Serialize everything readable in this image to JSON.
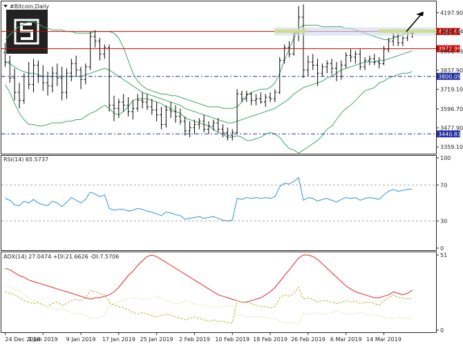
{
  "window": {
    "title": "#Bitcoin,Daily"
  },
  "colors": {
    "candle": "#000000",
    "bollinger": "#3fa463",
    "rsi": "#2f8fe0",
    "adx": "#e0242a",
    "di_plus": "#b5b02a",
    "di_minus": "#cfe29a",
    "level": "#cc0000",
    "dashed_level": "#1d2a9c",
    "highlight": "#d8e000",
    "logo": "#222222"
  },
  "price_panel": {
    "price_ticks": [
      "4197.90",
      "4080.64",
      "3956.73",
      "3837.90",
      "3719.10",
      "3596.70",
      "3477.90",
      "3359.10"
    ],
    "levels": [
      {
        "label": "4080.64",
        "value": 4080.64,
        "style": "solid"
      },
      {
        "label": "3972.96",
        "value": 3972.96,
        "style": "solid"
      },
      {
        "label": "3800.09",
        "value": 3800.09,
        "style": "dashed"
      },
      {
        "label": "3440.81",
        "value": 3440.81,
        "style": "dashed"
      }
    ]
  },
  "rsi_panel": {
    "label": "RSI(14) 65.5737",
    "ticks": [
      "100",
      "70",
      "30",
      "0"
    ]
  },
  "adx_panel": {
    "label": "ADX(14) 27.0474 +DI:21.6626 -DI:7.5706",
    "ticks": [
      "51",
      "0"
    ]
  },
  "x_axis": {
    "labels": [
      "24 Dec 2018",
      "1 Jan 2019",
      "9 Jan 2019",
      "17 Jan 2019",
      "25 Jan 2019",
      "2 Feb 2019",
      "10 Feb 2019",
      "18 Feb 2019",
      "26 Feb 2019",
      "6 Mar 2019",
      "14 Mar 2019"
    ]
  },
  "chart_data": [
    {
      "type": "candlestick",
      "title": "#Bitcoin,Daily",
      "ylim": [
        3330,
        4260
      ],
      "x_labels": [
        "24 Dec 2018",
        "1 Jan 2019",
        "9 Jan 2019",
        "17 Jan 2019",
        "25 Jan 2019",
        "2 Feb 2019",
        "10 Feb 2019",
        "18 Feb 2019",
        "26 Feb 2019",
        "6 Mar 2019",
        "14 Mar 2019"
      ],
      "candles": [
        [
          3950,
          4010,
          3860,
          3890
        ],
        [
          3890,
          3930,
          3760,
          3790
        ],
        [
          3790,
          3850,
          3650,
          3700
        ],
        [
          3700,
          3760,
          3600,
          3650
        ],
        [
          3650,
          3820,
          3630,
          3800
        ],
        [
          3800,
          3890,
          3720,
          3750
        ],
        [
          3750,
          3910,
          3700,
          3870
        ],
        [
          3870,
          3900,
          3760,
          3800
        ],
        [
          3800,
          3870,
          3710,
          3760
        ],
        [
          3760,
          3830,
          3680,
          3740
        ],
        [
          3740,
          3860,
          3700,
          3820
        ],
        [
          3820,
          3880,
          3740,
          3790
        ],
        [
          3790,
          3860,
          3650,
          3700
        ],
        [
          3700,
          3850,
          3660,
          3820
        ],
        [
          3820,
          3910,
          3770,
          3880
        ],
        [
          3880,
          3930,
          3800,
          3840
        ],
        [
          3840,
          3860,
          3720,
          3780
        ],
        [
          3780,
          3880,
          3750,
          3860
        ],
        [
          3860,
          4080,
          3840,
          4050
        ],
        [
          4050,
          4090,
          3980,
          4020
        ],
        [
          4020,
          4040,
          3900,
          3940
        ],
        [
          3940,
          4000,
          3910,
          3980
        ],
        [
          3980,
          4000,
          3580,
          3620
        ],
        [
          3620,
          3680,
          3520,
          3600
        ],
        [
          3600,
          3660,
          3540,
          3640
        ],
        [
          3640,
          3690,
          3580,
          3620
        ],
        [
          3620,
          3670,
          3550,
          3580
        ],
        [
          3580,
          3650,
          3530,
          3600
        ],
        [
          3600,
          3690,
          3580,
          3650
        ],
        [
          3650,
          3700,
          3600,
          3640
        ],
        [
          3640,
          3690,
          3590,
          3610
        ],
        [
          3610,
          3660,
          3560,
          3590
        ],
        [
          3590,
          3640,
          3520,
          3560
        ],
        [
          3560,
          3610,
          3470,
          3500
        ],
        [
          3500,
          3620,
          3480,
          3590
        ],
        [
          3590,
          3640,
          3540,
          3580
        ],
        [
          3580,
          3620,
          3510,
          3550
        ],
        [
          3550,
          3600,
          3500,
          3520
        ],
        [
          3520,
          3550,
          3430,
          3460
        ],
        [
          3460,
          3520,
          3420,
          3480
        ],
        [
          3480,
          3530,
          3440,
          3500
        ],
        [
          3500,
          3540,
          3470,
          3520
        ],
        [
          3520,
          3560,
          3450,
          3470
        ],
        [
          3470,
          3520,
          3440,
          3490
        ],
        [
          3490,
          3530,
          3460,
          3510
        ],
        [
          3510,
          3540,
          3450,
          3470
        ],
        [
          3470,
          3500,
          3420,
          3450
        ],
        [
          3450,
          3480,
          3400,
          3430
        ],
        [
          3430,
          3470,
          3400,
          3450
        ],
        [
          3450,
          3720,
          3440,
          3690
        ],
        [
          3690,
          3710,
          3640,
          3660
        ],
        [
          3660,
          3710,
          3640,
          3690
        ],
        [
          3690,
          3700,
          3620,
          3650
        ],
        [
          3650,
          3690,
          3620,
          3660
        ],
        [
          3660,
          3700,
          3630,
          3640
        ],
        [
          3640,
          3690,
          3610,
          3670
        ],
        [
          3670,
          3700,
          3640,
          3660
        ],
        [
          3660,
          3720,
          3640,
          3700
        ],
        [
          3700,
          3920,
          3690,
          3900
        ],
        [
          3900,
          4000,
          3880,
          3980
        ],
        [
          3980,
          4020,
          3920,
          3940
        ],
        [
          3940,
          4090,
          3930,
          4070
        ],
        [
          4070,
          4240,
          4020,
          4170
        ],
        [
          4170,
          4250,
          3790,
          3840
        ],
        [
          3840,
          3930,
          3800,
          3890
        ],
        [
          3890,
          3940,
          3840,
          3870
        ],
        [
          3870,
          3910,
          3740,
          3820
        ],
        [
          3820,
          3880,
          3800,
          3860
        ],
        [
          3860,
          3900,
          3820,
          3880
        ],
        [
          3880,
          3910,
          3810,
          3850
        ],
        [
          3850,
          3890,
          3770,
          3800
        ],
        [
          3800,
          3900,
          3780,
          3870
        ],
        [
          3870,
          3950,
          3850,
          3930
        ],
        [
          3930,
          3970,
          3890,
          3920
        ],
        [
          3920,
          3960,
          3880,
          3940
        ],
        [
          3940,
          3970,
          3840,
          3860
        ],
        [
          3860,
          3920,
          3840,
          3900
        ],
        [
          3900,
          3930,
          3870,
          3910
        ],
        [
          3910,
          3940,
          3870,
          3890
        ],
        [
          3890,
          3920,
          3850,
          3880
        ],
        [
          3880,
          3990,
          3870,
          3970
        ],
        [
          3970,
          4040,
          3950,
          4020
        ],
        [
          4020,
          4070,
          3990,
          4050
        ],
        [
          4050,
          4070,
          3990,
          4010
        ],
        [
          4010,
          4050,
          3990,
          4040
        ],
        [
          4040,
          4090,
          4020,
          4070
        ],
        [
          4070,
          4090,
          4040,
          4068
        ]
      ],
      "bollinger_upper": [
        4030,
        4060,
        4090,
        4110,
        4130,
        4140,
        4140,
        4130,
        4110,
        4100,
        4090,
        4090,
        4090,
        4080,
        4080,
        4070,
        4070,
        4070,
        4070,
        4080,
        4080,
        4080,
        4080,
        4070,
        4040,
        3980,
        3900,
        3820,
        3770,
        3740,
        3720,
        3710,
        3700,
        3690,
        3690,
        3680,
        3680,
        3670,
        3660,
        3650,
        3640,
        3630,
        3620,
        3610,
        3610,
        3610,
        3600,
        3600,
        3600,
        3610,
        3640,
        3680,
        3700,
        3710,
        3720,
        3720,
        3730,
        3760,
        3820,
        3900,
        3970,
        4040,
        4100,
        4120,
        4120,
        4120,
        4120,
        4110,
        4110,
        4110,
        4110,
        4110,
        4100,
        4100,
        4090,
        4080,
        4070,
        4060,
        4050,
        4040,
        4030,
        4030,
        4040,
        4050,
        4060,
        4080,
        4090
      ],
      "bollinger_middle": [
        3890,
        3880,
        3860,
        3840,
        3830,
        3820,
        3820,
        3810,
        3800,
        3800,
        3800,
        3800,
        3800,
        3800,
        3800,
        3800,
        3800,
        3810,
        3820,
        3830,
        3840,
        3850,
        3840,
        3820,
        3800,
        3780,
        3760,
        3740,
        3720,
        3700,
        3690,
        3680,
        3670,
        3660,
        3650,
        3640,
        3630,
        3620,
        3600,
        3590,
        3580,
        3570,
        3560,
        3550,
        3540,
        3530,
        3520,
        3510,
        3510,
        3520,
        3530,
        3540,
        3550,
        3560,
        3570,
        3580,
        3590,
        3600,
        3620,
        3640,
        3660,
        3690,
        3710,
        3730,
        3740,
        3750,
        3760,
        3770,
        3790,
        3800,
        3820,
        3840,
        3850,
        3860,
        3870,
        3880,
        3890,
        3890,
        3890,
        3900,
        3900,
        3910,
        3920,
        3930,
        3940,
        3950,
        3960
      ],
      "bollinger_lower": [
        3750,
        3700,
        3630,
        3570,
        3530,
        3500,
        3500,
        3490,
        3490,
        3500,
        3510,
        3510,
        3510,
        3520,
        3520,
        3530,
        3530,
        3550,
        3570,
        3580,
        3600,
        3620,
        3600,
        3570,
        3560,
        3580,
        3610,
        3650,
        3660,
        3660,
        3660,
        3650,
        3640,
        3630,
        3610,
        3600,
        3580,
        3570,
        3540,
        3530,
        3520,
        3510,
        3500,
        3490,
        3470,
        3450,
        3440,
        3420,
        3420,
        3430,
        3420,
        3400,
        3400,
        3410,
        3420,
        3440,
        3450,
        3440,
        3420,
        3380,
        3350,
        3340,
        3320,
        3340,
        3360,
        3380,
        3400,
        3430,
        3470,
        3490,
        3530,
        3570,
        3600,
        3620,
        3650,
        3680,
        3710,
        3720,
        3730,
        3760,
        3770,
        3790,
        3800,
        3810,
        3820,
        3820,
        3830
      ]
    },
    {
      "type": "line",
      "title": "RSI(14) 65.5737",
      "ylim": [
        0,
        100
      ],
      "series": [
        {
          "values": [
            55,
            53,
            48,
            47,
            52,
            50,
            54,
            50,
            48,
            47,
            52,
            50,
            46,
            51,
            56,
            53,
            50,
            54,
            62,
            60,
            57,
            59,
            44,
            42,
            43,
            43,
            41,
            42,
            44,
            43,
            41,
            40,
            38,
            36,
            40,
            39,
            37,
            36,
            32,
            33,
            34,
            35,
            33,
            34,
            35,
            33,
            31,
            30,
            31,
            55,
            54,
            56,
            55,
            56,
            55,
            56,
            55,
            57,
            68,
            72,
            71,
            74,
            78,
            53,
            56,
            55,
            52,
            54,
            55,
            53,
            51,
            54,
            56,
            55,
            56,
            53,
            55,
            56,
            55,
            54,
            59,
            63,
            65,
            63,
            64,
            65,
            65.5737
          ]
        }
      ]
    },
    {
      "type": "line",
      "title": "ADX(14) 27.0474 +DI:21.6626 -DI:7.5706",
      "ylim": [
        0,
        51
      ],
      "series": [
        {
          "name": "ADX",
          "values": [
            42,
            41,
            39,
            37,
            36,
            34,
            33,
            32,
            31,
            30,
            29,
            28,
            27,
            26,
            25,
            24,
            23,
            22,
            21,
            22,
            22,
            23,
            24,
            26,
            29,
            33,
            37,
            40,
            44,
            47,
            50,
            51,
            50,
            48,
            46,
            44,
            42,
            40,
            38,
            36,
            34,
            32,
            30,
            28,
            26,
            24,
            23,
            22,
            21,
            20,
            19,
            19,
            20,
            21,
            22,
            24,
            26,
            29,
            33,
            37,
            41,
            45,
            49,
            51,
            51,
            50,
            48,
            45,
            42,
            39,
            36,
            33,
            30,
            28,
            26,
            25,
            24,
            23,
            22,
            22,
            23,
            24,
            26,
            25,
            24,
            25,
            27.0474
          ]
        },
        {
          "name": "+DI",
          "values": [
            26,
            25,
            24,
            22,
            20,
            19,
            18,
            19,
            17,
            16,
            18,
            19,
            17,
            18,
            20,
            21,
            20,
            22,
            27,
            26,
            25,
            24,
            19,
            17,
            16,
            15,
            14,
            12,
            11,
            12,
            11,
            10,
            9,
            10,
            11,
            10,
            9,
            8,
            7,
            8,
            9,
            8,
            7,
            6,
            7,
            6,
            6,
            5,
            5,
            20,
            19,
            19,
            18,
            17,
            16,
            16,
            15,
            16,
            22,
            24,
            23,
            25,
            29,
            21,
            22,
            21,
            19,
            20,
            20,
            19,
            18,
            19,
            20,
            19,
            20,
            18,
            19,
            19,
            18,
            17,
            20,
            22,
            24,
            22,
            22,
            21,
            21.6626
          ]
        },
        {
          "name": "-DI",
          "values": [
            30,
            30,
            28,
            27,
            24,
            22,
            20,
            18,
            17,
            16,
            15,
            14,
            15,
            13,
            12,
            11,
            11,
            10,
            8,
            8,
            9,
            10,
            17,
            18,
            19,
            20,
            21,
            22,
            22,
            21,
            21,
            22,
            23,
            22,
            20,
            19,
            18,
            18,
            20,
            19,
            18,
            17,
            17,
            16,
            15,
            15,
            16,
            17,
            16,
            10,
            10,
            9,
            9,
            9,
            9,
            9,
            8,
            8,
            6,
            5,
            5,
            5,
            4,
            12,
            11,
            11,
            12,
            11,
            11,
            12,
            13,
            12,
            11,
            11,
            11,
            12,
            11,
            10,
            10,
            10,
            9,
            8,
            8,
            9,
            8,
            8,
            7.5706
          ]
        }
      ]
    }
  ]
}
